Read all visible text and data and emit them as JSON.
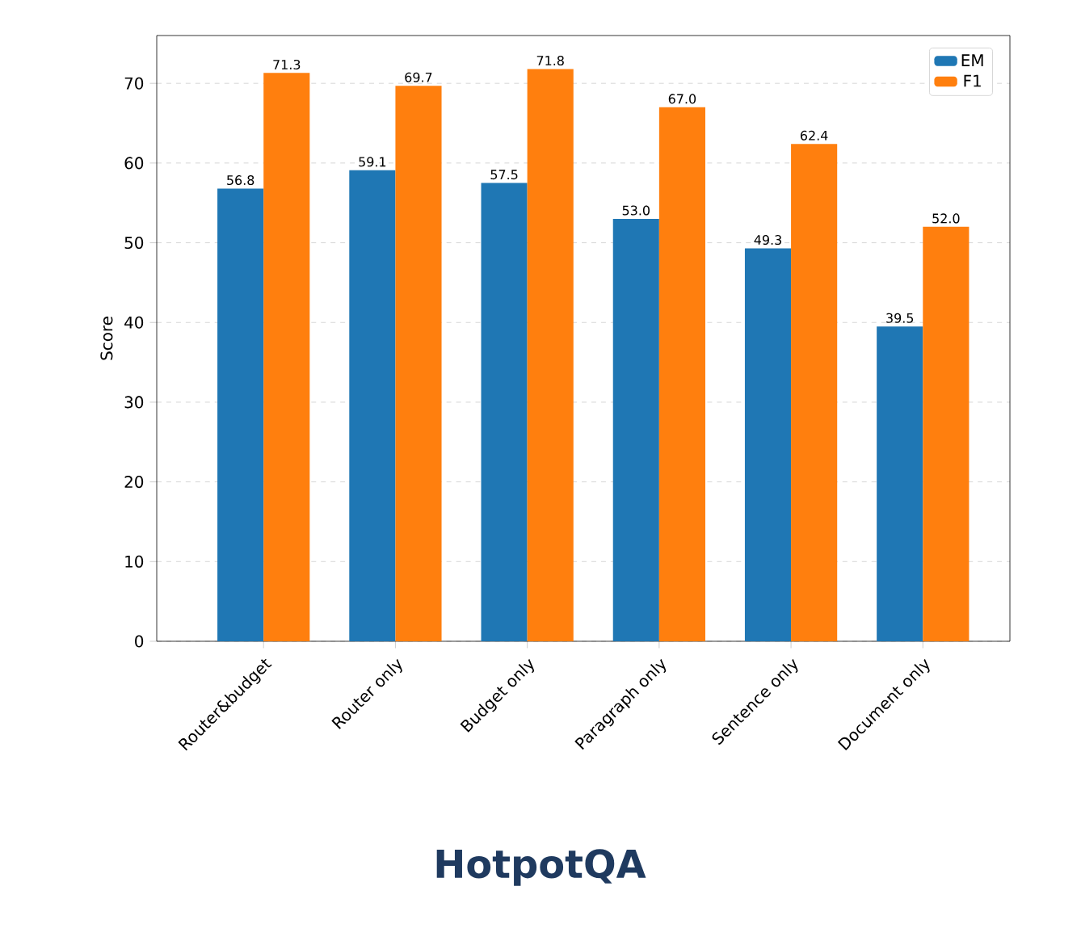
{
  "chart_data": {
    "type": "bar",
    "title": "HotpotQA",
    "ylabel": "Score",
    "categories": [
      "Router&budget",
      "Router only",
      "Budget only",
      "Paragraph only",
      "Sentence only",
      "Document only"
    ],
    "series": [
      {
        "name": "EM",
        "color": "#1f77b4",
        "values": [
          56.8,
          59.1,
          57.5,
          53,
          49.3,
          39.5
        ],
        "value_labels": [
          "56.8",
          "59.1",
          "57.5",
          "53.0",
          "49.3",
          "39.5"
        ]
      },
      {
        "name": "F1",
        "color": "#ff7f0e",
        "values": [
          71.3,
          69.7,
          71.8,
          67,
          62.4,
          52
        ],
        "value_labels": [
          "71.3",
          "69.7",
          "71.8",
          "67.0",
          "62.4",
          "52.0"
        ]
      }
    ],
    "ylim": [
      0,
      76
    ],
    "yticks": [
      0,
      10,
      20,
      30,
      40,
      50,
      60,
      70
    ],
    "grid": "y",
    "legend": "top right"
  }
}
